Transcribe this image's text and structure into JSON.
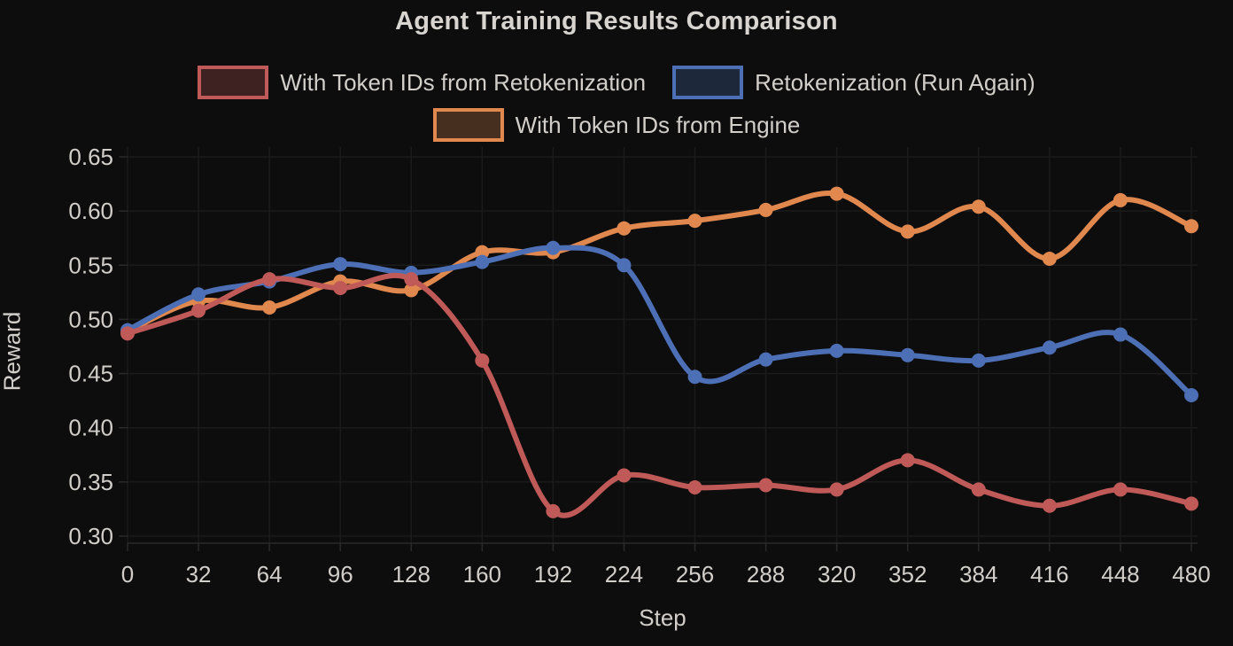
{
  "title": "Agent Training Results Comparison",
  "colors": {
    "background": "#0d0d0d",
    "text": "#d2cfca",
    "grid": "#1b1b1b",
    "axis_border": "#2a2a2a",
    "series_red": "#c05a58",
    "series_blue": "#4d6fb5",
    "series_orange": "#e0884e"
  },
  "chart_data": {
    "type": "line",
    "title": "Agent Training Results Comparison",
    "xlabel": "Step",
    "ylabel": "Reward",
    "legend_position": "top",
    "grid": true,
    "x": [
      0,
      32,
      64,
      96,
      128,
      160,
      192,
      224,
      256,
      288,
      320,
      352,
      384,
      416,
      448,
      480
    ],
    "x_tick_labels": [
      "0",
      "32",
      "64",
      "96",
      "128",
      "160",
      "192",
      "224",
      "256",
      "288",
      "320",
      "352",
      "384",
      "416",
      "448",
      "480"
    ],
    "ylim": [
      0.3,
      0.65
    ],
    "y_ticks": [
      0.65,
      0.6,
      0.55,
      0.5,
      0.45,
      0.4,
      0.35,
      0.3
    ],
    "y_tick_labels": [
      "0.65",
      "0.60",
      "0.55",
      "0.50",
      "0.45",
      "0.40",
      "0.35",
      "0.30"
    ],
    "series": [
      {
        "name": "With Token IDs from Retokenization",
        "color": "#c05a58",
        "values": [
          0.487,
          0.508,
          0.537,
          0.529,
          0.537,
          0.462,
          0.323,
          0.356,
          0.345,
          0.347,
          0.343,
          0.37,
          0.343,
          0.328,
          0.343,
          0.33
        ]
      },
      {
        "name": "Retokenization (Run Again)",
        "color": "#4d6fb5",
        "values": [
          0.49,
          0.523,
          0.535,
          0.551,
          0.543,
          0.553,
          0.566,
          0.55,
          0.447,
          0.463,
          0.471,
          0.467,
          0.462,
          0.474,
          0.486,
          0.43
        ]
      },
      {
        "name": "With Token IDs from Engine",
        "color": "#e0884e",
        "values": [
          0.489,
          0.517,
          0.511,
          0.535,
          0.527,
          0.562,
          0.562,
          0.584,
          0.591,
          0.601,
          0.616,
          0.581,
          0.604,
          0.556,
          0.61,
          0.586
        ]
      }
    ]
  }
}
